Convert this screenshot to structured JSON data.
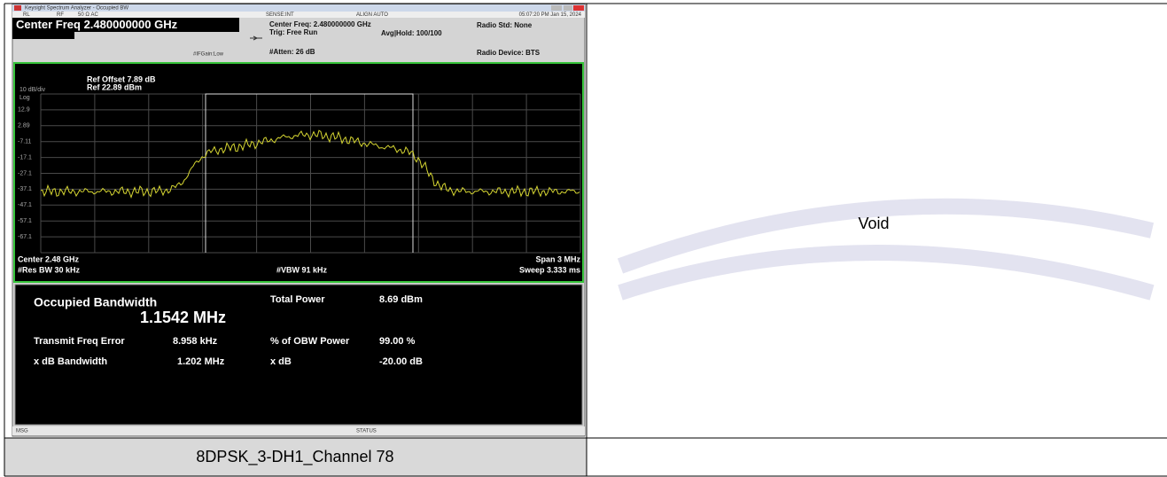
{
  "analyzer": {
    "window_title": "Keysight Spectrum Analyzer - Occupied BW",
    "status_bar": {
      "rl": "RL",
      "rf": "RF",
      "input": "50 Ω AC",
      "sense": "SENSE:INT",
      "align": "ALIGN AUTO",
      "timestamp": "05:07:20 PM Jan 15, 2024"
    },
    "header": {
      "center_freq": "Center Freq 2.480000000 GHz",
      "if_gain": "#IFGain:Low",
      "center_freq_info": "Center Freq: 2.480000000 GHz",
      "trig": "Trig: Free Run",
      "avg_hold": "Avg|Hold: 100/100",
      "atten": "#Atten: 26 dB",
      "radio_std": "Radio Std: None",
      "radio_device": "Radio Device: BTS"
    },
    "plot": {
      "ref_offset": "Ref Offset 7.89 dB",
      "scale": "10 dB/div",
      "ref_level": "Ref 22.89 dBm",
      "scale_type": "Log",
      "y_labels": [
        "12.9",
        "2.89",
        "-7.11",
        "-17.1",
        "-27.1",
        "-37.1",
        "-47.1",
        "-57.1",
        "-67.1"
      ],
      "center": "Center 2.48 GHz",
      "res_bw": "#Res BW 30 kHz",
      "vbw": "#VBW 91 kHz",
      "span": "Span 3 MHz",
      "sweep": "Sweep 3.333 ms"
    },
    "results": {
      "occupied_bandwidth": {
        "label": "Occupied Bandwidth",
        "value": "1.1542 MHz"
      },
      "total_power": {
        "label": "Total Power",
        "value": "8.69 dBm"
      },
      "transmit_freq_error": {
        "label": "Transmit Freq Error",
        "value": "8.958 kHz"
      },
      "obw_power": {
        "label": "% of OBW Power",
        "value": "99.00 %"
      },
      "x_db_bandwidth": {
        "label": "x dB Bandwidth",
        "value": "1.202 MHz"
      },
      "x_db": {
        "label": "x dB",
        "value": "-20.00 dB"
      }
    },
    "footer": {
      "msg": "MSG",
      "status": "STATUS"
    }
  },
  "table": {
    "caption": "8DPSK_3-DH1_Channel 78",
    "right_cell": "Void"
  }
}
